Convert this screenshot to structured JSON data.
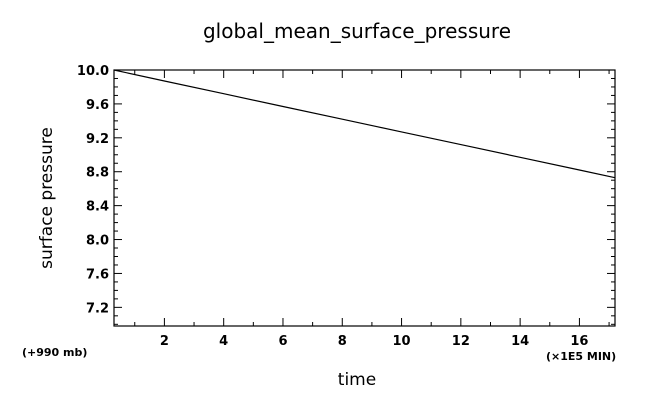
{
  "chart_data": {
    "type": "line",
    "title": "global_mean_surface_pressure",
    "xlabel": "time",
    "ylabel": "surface pressure",
    "x_unit_label": "(×1E5 MIN)",
    "y_offset_label": "(+990 mb)",
    "xlim": [
      0.3,
      17.2
    ],
    "ylim": [
      6.98,
      10.0
    ],
    "x_ticks": [
      2,
      4,
      6,
      8,
      10,
      12,
      14,
      16
    ],
    "y_ticks": [
      7.2,
      7.6,
      8.0,
      8.4,
      8.8,
      9.2,
      9.6,
      10.0
    ],
    "y_tick_labels": [
      "7.2",
      "7.6",
      "8.0",
      "8.4",
      "8.8",
      "9.2",
      "9.6",
      "10.0"
    ],
    "grid": false,
    "series": [
      {
        "x": [
          0.3,
          2,
          4,
          6,
          8,
          10,
          12,
          14,
          16,
          17.2
        ],
        "y": [
          10.0,
          9.87,
          9.72,
          9.57,
          9.42,
          9.27,
          9.12,
          8.97,
          8.82,
          8.73
        ]
      }
    ]
  }
}
